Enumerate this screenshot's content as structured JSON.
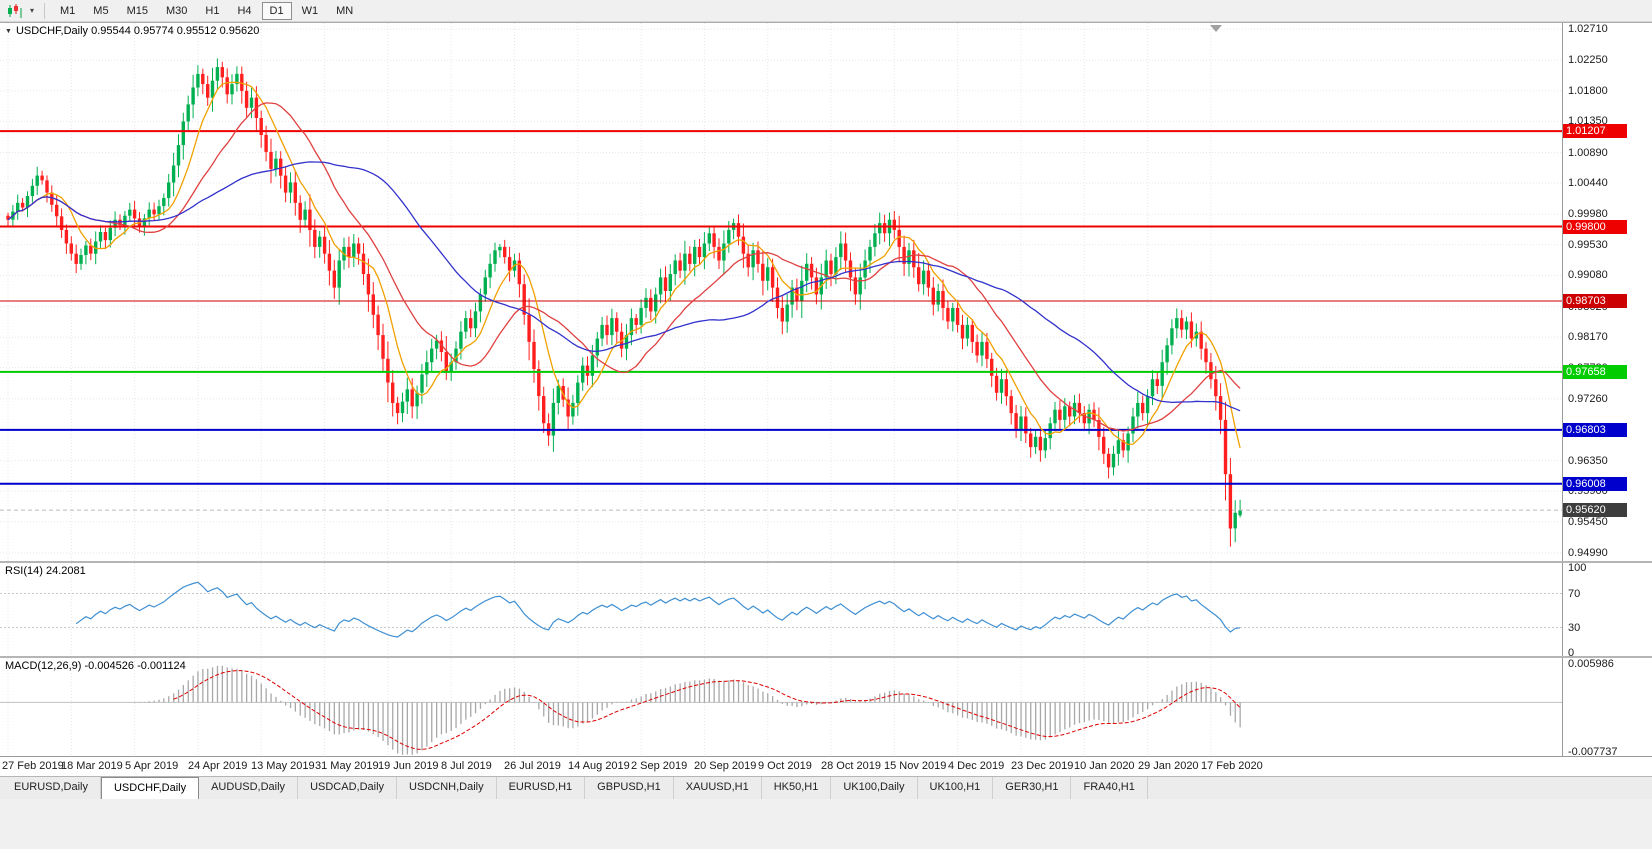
{
  "toolbar": {
    "chart_type_icon": "candlestick-chart-icon",
    "dropdown_icon": "chevron-down-icon",
    "timeframes": [
      "M1",
      "M5",
      "M15",
      "M30",
      "H1",
      "H4",
      "D1",
      "W1",
      "MN"
    ],
    "active_timeframe": "D1"
  },
  "chart": {
    "title_line": "USDCHF,Daily 0.95544 0.95774 0.95512 0.95620"
  },
  "chart_data": {
    "type": "candlestick",
    "symbol": "USDCHF",
    "timeframe": "Daily",
    "current_bar": {
      "open": 0.95544,
      "high": 0.95774,
      "low": 0.95512,
      "close": 0.9562
    },
    "up_color": "#00b050",
    "down_color": "#ff1f1f",
    "bars_per_label": 13,
    "x_axis_dates": [
      "27 Feb 2019",
      "18 Mar 2019",
      "5 Apr 2019",
      "24 Apr 2019",
      "13 May 2019",
      "31 May 2019",
      "19 Jun 2019",
      "8 Jul 2019",
      "26 Jul 2019",
      "14 Aug 2019",
      "2 Sep 2019",
      "20 Sep 2019",
      "9 Oct 2019",
      "28 Oct 2019",
      "15 Nov 2019",
      "4 Dec 2019",
      "23 Dec 2019",
      "10 Jan 2020",
      "29 Jan 2020",
      "17 Feb 2020"
    ],
    "price_axis_ticks": [
      "1.02710",
      "1.02250",
      "1.01800",
      "1.01350",
      "1.00890",
      "1.00440",
      "0.99980",
      "0.99530",
      "0.99080",
      "0.98620",
      "0.98170",
      "0.97720",
      "0.97260",
      "0.96350",
      "0.95900",
      "0.95450",
      "0.94990"
    ],
    "horizontal_lines": [
      {
        "value": "1.01207",
        "color": "#ee0000",
        "width": 2
      },
      {
        "value": "0.99800",
        "color": "#ee0000",
        "width": 2
      },
      {
        "value": "0.98703",
        "color": "#cc0000",
        "width": 1
      },
      {
        "value": "0.97658",
        "color": "#00cc00",
        "width": 2
      },
      {
        "value": "0.96803",
        "color": "#0000cc",
        "width": 2
      },
      {
        "value": "0.96008",
        "color": "#0000cc",
        "width": 2
      }
    ],
    "current_price_badge": {
      "value": "0.95620",
      "color": "#3d3d3d"
    },
    "moving_averages": [
      {
        "period": 8,
        "color": "#f0a000"
      },
      {
        "period": 20,
        "color": "#e04040"
      },
      {
        "period": 45,
        "color": "#3232cc"
      }
    ],
    "closes": [
      0.999,
      1.0002,
      1.0015,
      1.0008,
      1.0025,
      1.004,
      1.0055,
      1.0048,
      1.003,
      1.0012,
      0.9995,
      0.9975,
      0.9955,
      0.994,
      0.9925,
      0.9938,
      0.9952,
      0.994,
      0.9958,
      0.9972,
      0.996,
      0.9978,
      0.999,
      0.9982,
      0.9996,
      1.0005,
      0.9992,
      0.998,
      0.9992,
      1.0005,
      0.9998,
      1.001,
      1.0022,
      1.0045,
      1.007,
      1.01,
      1.0135,
      1.016,
      1.0185,
      1.0205,
      1.019,
      1.017,
      1.0195,
      1.0215,
      1.02,
      1.0175,
      1.019,
      1.0205,
      1.018,
      1.0155,
      1.017,
      1.014,
      1.0115,
      1.009,
      1.0065,
      1.008,
      1.0055,
      1.003,
      1.0045,
      1.0015,
      0.999,
      1.0005,
      0.9975,
      0.995,
      0.9965,
      0.994,
      0.9915,
      0.989,
      0.993,
      0.995,
      0.9935,
      0.9955,
      0.994,
      0.991,
      0.988,
      0.985,
      0.982,
      0.9785,
      0.975,
      0.972,
      0.9705,
      0.9722,
      0.974,
      0.9715,
      0.9735,
      0.9762,
      0.978,
      0.98,
      0.9812,
      0.9795,
      0.9765,
      0.978,
      0.98,
      0.9825,
      0.9845,
      0.983,
      0.9855,
      0.988,
      0.9905,
      0.9925,
      0.9945,
      0.995,
      0.9935,
      0.9915,
      0.993,
      0.9895,
      0.985,
      0.981,
      0.977,
      0.973,
      0.969,
      0.9672,
      0.972,
      0.9745,
      0.9725,
      0.97,
      0.972,
      0.975,
      0.9775,
      0.976,
      0.979,
      0.9815,
      0.9835,
      0.982,
      0.9845,
      0.9825,
      0.98,
      0.982,
      0.9845,
      0.9835,
      0.986,
      0.9875,
      0.9855,
      0.988,
      0.9905,
      0.9885,
      0.991,
      0.993,
      0.9915,
      0.994,
      0.9925,
      0.995,
      0.9935,
      0.9955,
      0.997,
      0.995,
      0.993,
      0.9955,
      0.9975,
      0.9985,
      0.9965,
      0.994,
      0.992,
      0.9945,
      0.9925,
      0.99,
      0.992,
      0.989,
      0.986,
      0.984,
      0.9865,
      0.989,
      0.987,
      0.99,
      0.9925,
      0.9905,
      0.988,
      0.9905,
      0.993,
      0.991,
      0.9935,
      0.9955,
      0.993,
      0.9905,
      0.988,
      0.9905,
      0.993,
      0.995,
      0.997,
      0.9985,
      0.997,
      0.999,
      0.9975,
      0.995,
      0.9925,
      0.9945,
      0.992,
      0.9895,
      0.9915,
      0.989,
      0.9865,
      0.9885,
      0.986,
      0.984,
      0.986,
      0.9835,
      0.9815,
      0.9835,
      0.981,
      0.979,
      0.981,
      0.9785,
      0.976,
      0.9735,
      0.9755,
      0.973,
      0.9705,
      0.968,
      0.97,
      0.9675,
      0.9655,
      0.967,
      0.965,
      0.9668,
      0.969,
      0.971,
      0.9695,
      0.9715,
      0.97,
      0.972,
      0.9705,
      0.969,
      0.971,
      0.9695,
      0.967,
      0.9645,
      0.9625,
      0.9645,
      0.9665,
      0.965,
      0.9675,
      0.97,
      0.972,
      0.9705,
      0.973,
      0.9755,
      0.9745,
      0.978,
      0.9805,
      0.983,
      0.9845,
      0.9828,
      0.984,
      0.9815,
      0.9825,
      0.98,
      0.978,
      0.9755,
      0.973,
      0.9695,
      0.9615,
      0.9535,
      0.9558,
      0.9562
    ],
    "indicators": {
      "rsi": {
        "label": "RSI(14) 24.2081",
        "period": 14,
        "value": "24.2081",
        "levels": [
          "100",
          "70",
          "30",
          "0"
        ],
        "line_color": "#3f8fd2"
      },
      "macd": {
        "label": "MACD(12,26,9) -0.004526 -0.001124",
        "fast": 12,
        "slow": 26,
        "signal": 9,
        "main_value": "-0.004526",
        "signal_value": "-0.001124",
        "axis_max": "0.005986",
        "axis_min": "-0.007737",
        "histogram_color": "#a8a8a8",
        "signal_color": "#dd0000"
      }
    }
  },
  "tabs": {
    "items": [
      "EURUSD,Daily",
      "USDCHF,Daily",
      "AUDUSD,Daily",
      "USDCAD,Daily",
      "USDCNH,Daily",
      "EURUSD,H1",
      "GBPUSD,H1",
      "XAUUSD,H1",
      "HK50,H1",
      "UK100,Daily",
      "UK100,H1",
      "GER30,H1",
      "FRA40,H1"
    ],
    "active_index": 1
  }
}
